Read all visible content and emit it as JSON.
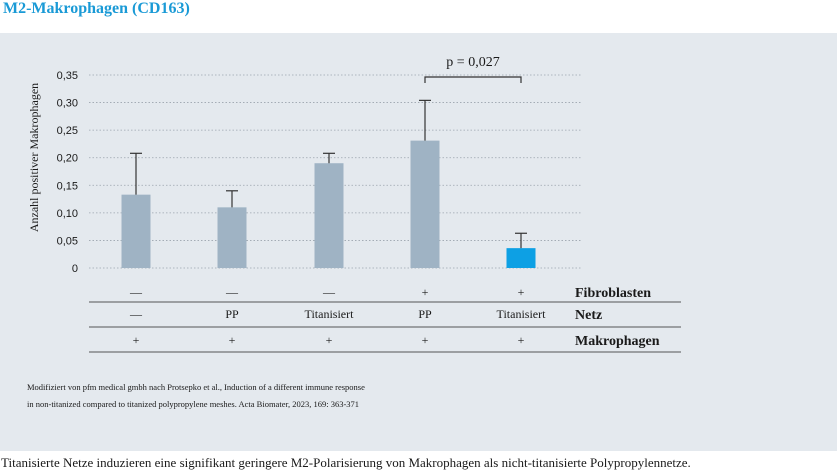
{
  "title": "M2-Makrophagen (CD163)",
  "chart_data": {
    "type": "bar",
    "ylabel": "Anzahl positiver Makrophagen",
    "ylim": [
      0,
      0.35
    ],
    "yticks": [
      "0",
      "0,05",
      "0,10",
      "0,15",
      "0,20",
      "0,25",
      "0,30",
      "0,35"
    ],
    "grid": "dotted horizontal",
    "values": [
      0.133,
      0.11,
      0.19,
      0.231,
      0.036
    ],
    "errors": [
      0.075,
      0.03,
      0.018,
      0.073,
      0.027
    ],
    "colors": [
      "#9fb3c4",
      "#9fb3c4",
      "#9fb3c4",
      "#9fb3c4",
      "#0da0e4"
    ],
    "significance": {
      "from": 3,
      "to": 4,
      "label": "p = 0,027"
    },
    "conditions": [
      {
        "label": "Fibroblasten",
        "values": [
          "—",
          "—",
          "—",
          "+",
          "+"
        ]
      },
      {
        "label": "Netz",
        "values": [
          "—",
          "PP",
          "Titanisiert",
          "PP",
          "Titanisiert"
        ]
      },
      {
        "label": "Makrophagen",
        "values": [
          "+",
          "+",
          "+",
          "+",
          "+"
        ]
      }
    ]
  },
  "source_lines": [
    "Modifiziert von pfm medical gmbh nach Protsepko et al., Induction of a different immune response",
    "in non-titanized compared to titanized polypropylene meshes. Acta Biomater, 2023, 169: 363-371"
  ],
  "caption": "Titanisierte Netze induzieren eine signifikant geringere M2-Polarisierung von Makrophagen als nicht-titanisierte Polypropylennetze."
}
